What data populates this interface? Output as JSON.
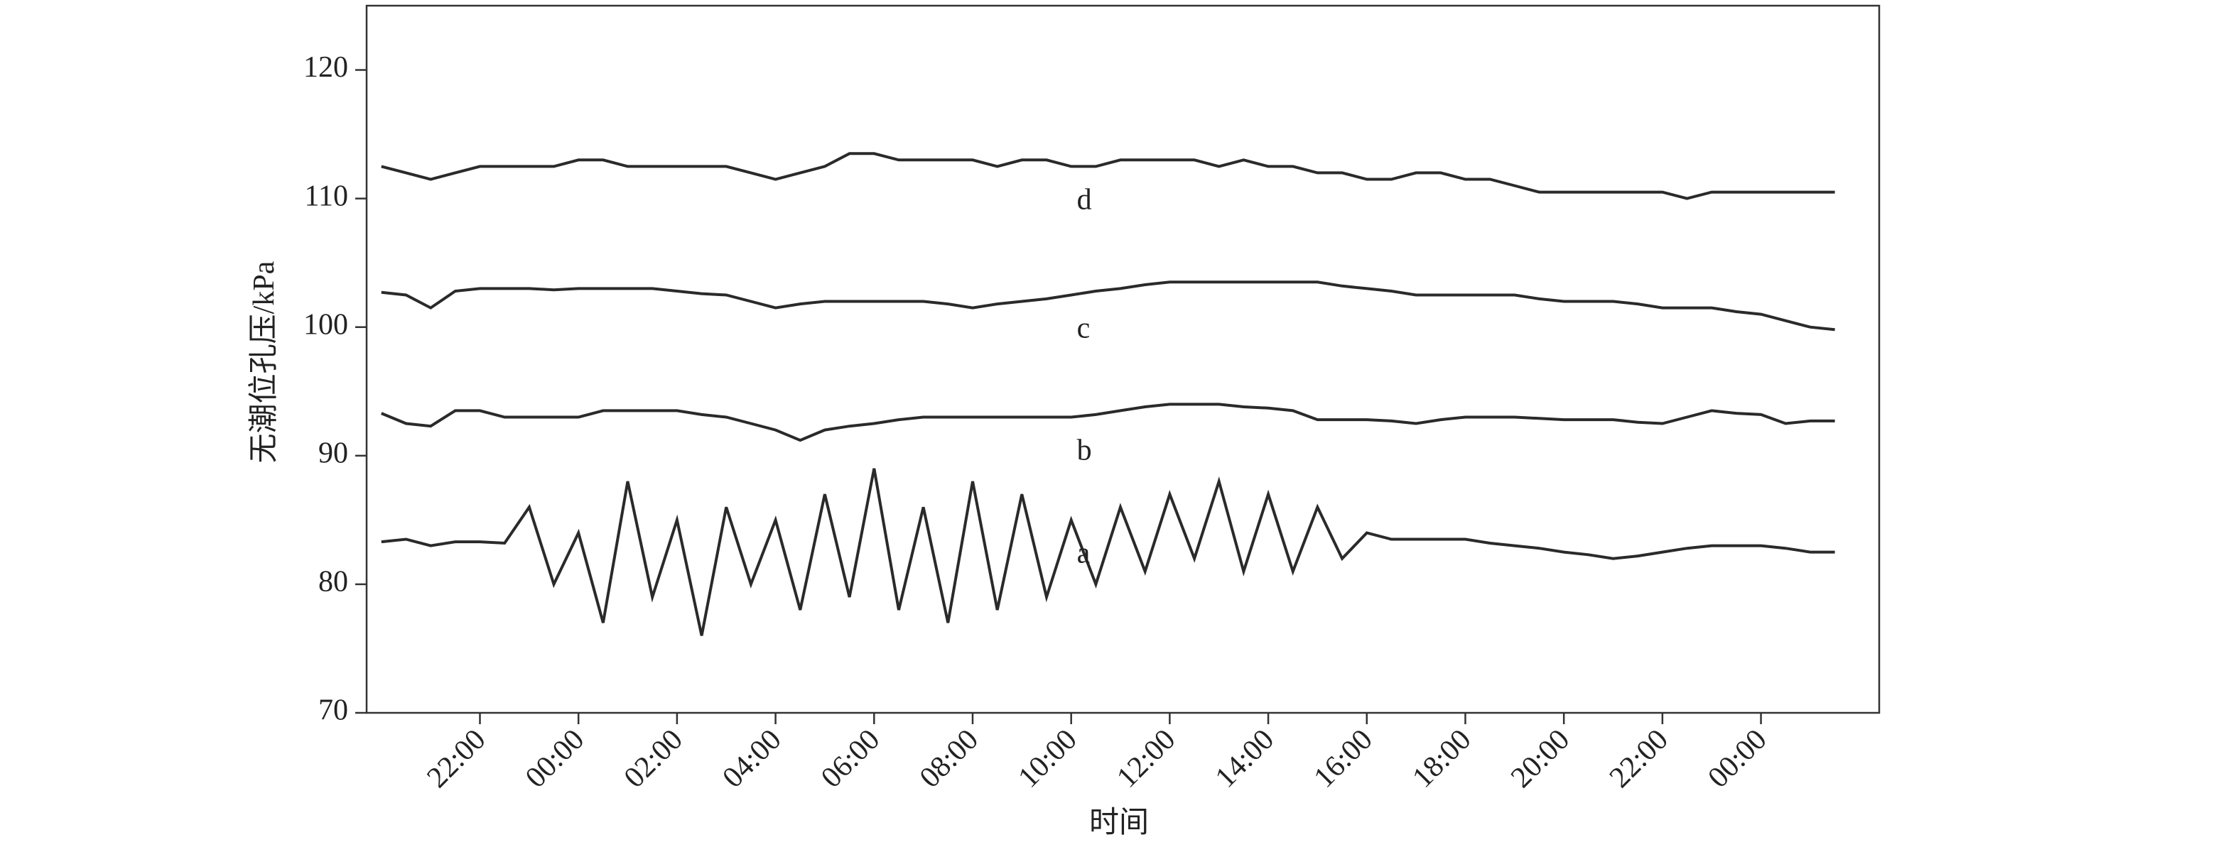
{
  "chart_data": {
    "type": "line",
    "xlabel": "时间",
    "ylabel": "无潮位孔压/kPa",
    "x": [
      0,
      0.5,
      1,
      1.5,
      2,
      2.5,
      3,
      3.5,
      4,
      4.5,
      5,
      5.5,
      6,
      6.5,
      7,
      7.5,
      8,
      8.5,
      9,
      9.5,
      10,
      10.5,
      11,
      11.5,
      12,
      12.5,
      13,
      13.5,
      14,
      14.5,
      15,
      15.5,
      16,
      16.5,
      17,
      17.5,
      18,
      18.5,
      19,
      19.5,
      20,
      20.5,
      21,
      21.5,
      22,
      22.5,
      23,
      23.5,
      24,
      24.5,
      25,
      25.5,
      26,
      26.5,
      27,
      27.5,
      28,
      28.5,
      29,
      29.5
    ],
    "series": [
      {
        "name": "a",
        "color": "#2a2a2a",
        "values": [
          83.3,
          83.5,
          83,
          83.3,
          83.3,
          83.2,
          86,
          80,
          84,
          77,
          88,
          79,
          85,
          76,
          86,
          80,
          85,
          78,
          87,
          79,
          89,
          78,
          86,
          77,
          88,
          78,
          87,
          79,
          85,
          80,
          86,
          81,
          87,
          82,
          88,
          81,
          87,
          81,
          86,
          82,
          84,
          83.5,
          83.5,
          83.5,
          83.5,
          83.2,
          83,
          82.8,
          82.5,
          82.3,
          82,
          82.2,
          82.5,
          82.8,
          83,
          83,
          83,
          82.8,
          82.5,
          82.5
        ]
      },
      {
        "name": "b",
        "color": "#2a2a2a",
        "values": [
          93.3,
          92.5,
          92.3,
          93.5,
          93.5,
          93,
          93,
          93,
          93,
          93.5,
          93.5,
          93.5,
          93.5,
          93.2,
          93,
          92.5,
          92,
          91.2,
          92,
          92.3,
          92.5,
          92.8,
          93,
          93,
          93,
          93,
          93,
          93,
          93,
          93.2,
          93.5,
          93.8,
          94,
          94,
          94,
          93.8,
          93.7,
          93.5,
          92.8,
          92.8,
          92.8,
          92.7,
          92.5,
          92.8,
          93,
          93,
          93,
          92.9,
          92.8,
          92.8,
          92.8,
          92.6,
          92.5,
          93,
          93.5,
          93.3,
          93.2,
          92.5,
          92.7,
          92.7
        ]
      },
      {
        "name": "c",
        "color": "#2a2a2a",
        "values": [
          102.7,
          102.5,
          101.5,
          102.8,
          103,
          103,
          103,
          102.9,
          103,
          103,
          103,
          103,
          102.8,
          102.6,
          102.5,
          102,
          101.5,
          101.8,
          102,
          102,
          102,
          102,
          102,
          101.8,
          101.5,
          101.8,
          102,
          102.2,
          102.5,
          102.8,
          103,
          103.3,
          103.5,
          103.5,
          103.5,
          103.5,
          103.5,
          103.5,
          103.5,
          103.2,
          103,
          102.8,
          102.5,
          102.5,
          102.5,
          102.5,
          102.5,
          102.2,
          102,
          102,
          102,
          101.8,
          101.5,
          101.5,
          101.5,
          101.2,
          101,
          100.5,
          100,
          99.8
        ]
      },
      {
        "name": "d",
        "color": "#2a2a2a",
        "values": [
          112.5,
          112,
          111.5,
          112,
          112.5,
          112.5,
          112.5,
          112.5,
          113,
          113,
          112.5,
          112.5,
          112.5,
          112.5,
          112.5,
          112,
          111.5,
          112,
          112.5,
          113.5,
          113.5,
          113,
          113,
          113,
          113,
          112.5,
          113,
          113,
          112.5,
          112.5,
          113,
          113,
          113,
          113,
          112.5,
          113,
          112.5,
          112.5,
          112,
          112,
          111.5,
          111.5,
          112,
          112,
          111.5,
          111.5,
          111,
          110.5,
          110.5,
          110.5,
          110.5,
          110.5,
          110.5,
          110,
          110.5,
          110.5,
          110.5,
          110.5,
          110.5,
          110.5
        ]
      }
    ],
    "xlim": [
      -0.3,
      30.4
    ],
    "xticks": [
      {
        "value": 2,
        "label": "22:00"
      },
      {
        "value": 4,
        "label": "00:00"
      },
      {
        "value": 6,
        "label": "02:00"
      },
      {
        "value": 8,
        "label": "04:00"
      },
      {
        "value": 10,
        "label": "06:00"
      },
      {
        "value": 12,
        "label": "08:00"
      },
      {
        "value": 14,
        "label": "10:00"
      },
      {
        "value": 16,
        "label": "12:00"
      },
      {
        "value": 18,
        "label": "14:00"
      },
      {
        "value": 20,
        "label": "16:00"
      },
      {
        "value": 22,
        "label": "18:00"
      },
      {
        "value": 24,
        "label": "20:00"
      },
      {
        "value": 26,
        "label": "22:00"
      },
      {
        "value": 28,
        "label": "00:00"
      }
    ],
    "ylim": [
      70,
      125
    ],
    "yticks": [
      70,
      80,
      90,
      100,
      110,
      120
    ],
    "grid": false
  }
}
